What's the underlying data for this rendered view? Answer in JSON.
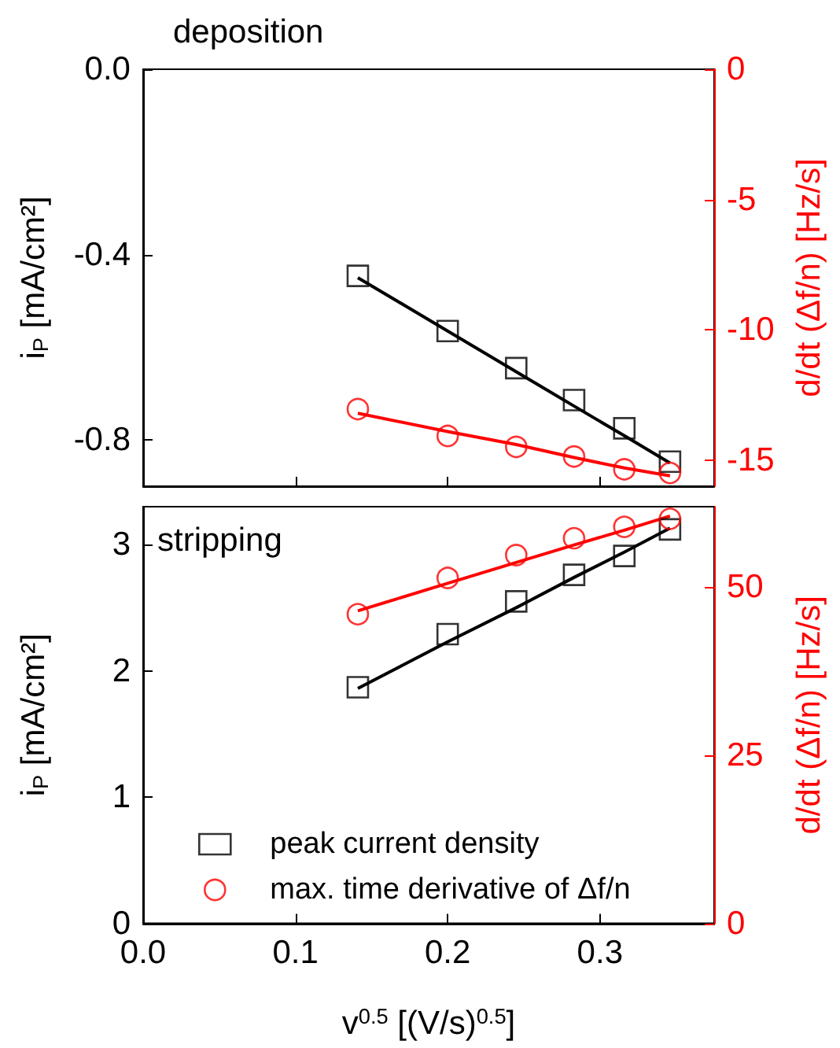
{
  "chart_data": [
    {
      "type": "scatter",
      "annotations": [
        "deposition"
      ],
      "ylabel": "i$_{P}$ [mA/cm²]",
      "y2label": "d/dt (Δf/n) [Hz/s]",
      "x": [
        0.141,
        0.2,
        0.245,
        0.283,
        0.316,
        0.346
      ],
      "xlim": [
        0,
        0.375
      ],
      "xticks": [
        0.1,
        0.2,
        0.3
      ],
      "ylim": [
        -0.9,
        0
      ],
      "yticks": [
        {
          "value": 0,
          "label": "0.0"
        },
        -0.4,
        -0.8
      ],
      "y2lim": [
        -16,
        0
      ],
      "y2ticks": [
        0,
        -5,
        -10,
        -15
      ],
      "tick_labels": "y",
      "grid": false,
      "legend": false,
      "series": [
        {
          "marker": "square",
          "color": "#000000",
          "values": [
            -0.446,
            -0.565,
            -0.645,
            -0.714,
            -0.775,
            -0.847
          ]
        },
        {
          "marker": "circle",
          "color": "#ff0000",
          "axis": "y2",
          "values": [
            -13.04,
            -14.07,
            -14.49,
            -14.86,
            -15.35,
            -15.49
          ]
        },
        {
          "type": "line",
          "marker": "none",
          "color": "#000000",
          "values": [
            -0.45,
            -0.565,
            -0.653,
            -0.727,
            -0.791,
            -0.85
          ]
        },
        {
          "type": "line",
          "marker": "none",
          "color": "#ff0000",
          "axis": "y2",
          "values": [
            -13.2,
            -13.9,
            -14.4,
            -14.9,
            -15.3,
            -15.6
          ]
        }
      ]
    },
    {
      "type": "scatter",
      "annotations": [
        "stripping"
      ],
      "xlabel": "v$^{0.5}$ [(V/s)$^{0.5}$]",
      "ylabel": "i$_{P}$ [mA/cm²]",
      "y2label": "d/dt (Δf/n) [Hz/s]",
      "x": [
        0.141,
        0.2,
        0.245,
        0.283,
        0.316,
        0.346
      ],
      "xlim": [
        0,
        0.375
      ],
      "xticks": [
        {
          "value": 0,
          "label": "0.0"
        },
        0.1,
        0.2,
        0.3
      ],
      "ylim": [
        0,
        3.3
      ],
      "yticks": [
        0,
        1,
        2,
        3
      ],
      "y2lim": [
        0,
        62
      ],
      "y2ticks": [
        0,
        25,
        50
      ],
      "grid": false,
      "legend": "bottom",
      "series": [
        {
          "name": "peak current density",
          "marker": "square",
          "color": "#000000",
          "values": [
            1.87,
            2.29,
            2.55,
            2.76,
            2.91,
            3.12
          ]
        },
        {
          "name": "max. time derivative of Δf/n",
          "marker": "circle",
          "color": "#ff0000",
          "axis": "y2",
          "values": [
            46.0,
            51.4,
            54.8,
            57.3,
            59.0,
            60.2
          ]
        },
        {
          "type": "line",
          "marker": "none",
          "color": "#000000",
          "values": [
            1.86,
            2.23,
            2.5,
            2.74,
            2.94,
            3.13
          ]
        },
        {
          "type": "line",
          "marker": "none",
          "color": "#ff0000",
          "axis": "y2",
          "values": [
            46.5,
            50.6,
            53.7,
            56.3,
            58.5,
            60.6
          ]
        }
      ]
    }
  ]
}
